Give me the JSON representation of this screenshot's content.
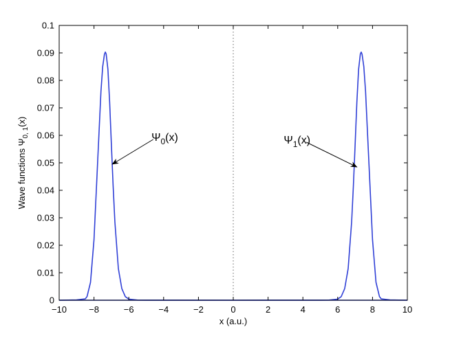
{
  "chart_data": {
    "type": "line",
    "title": "",
    "xlabel": "x (a.u.)",
    "ylabel_main": "Wave functions  Ψ",
    "ylabel_sub": "0, 1",
    "ylabel_tail": "(x)",
    "xlim": [
      -10,
      10
    ],
    "ylim": [
      0,
      0.1
    ],
    "xticks": [
      -10,
      -8,
      -6,
      -4,
      -2,
      0,
      2,
      4,
      6,
      8,
      10
    ],
    "xtick_labels": [
      "−10",
      "−8",
      "−6",
      "−4",
      "−2",
      "0",
      "2",
      "4",
      "6",
      "8",
      "10"
    ],
    "yticks": [
      0,
      0.01,
      0.02,
      0.03,
      0.04,
      0.05,
      0.06,
      0.07,
      0.08,
      0.09,
      0.1
    ],
    "ytick_labels": [
      "0",
      "0.01",
      "0.02",
      "0.03",
      "0.04",
      "0.05",
      "0.06",
      "0.07",
      "0.08",
      "0.09",
      "0.1"
    ],
    "grid": false,
    "line_color": "#2f3fd6",
    "center_line": {
      "x": 0,
      "style": "dotted",
      "color": "#666666"
    },
    "series": [
      {
        "x": [
          -10,
          -9.0,
          -8.5,
          -8.4,
          -8.2,
          -8.0,
          -7.8,
          -7.6,
          -7.5,
          -7.4,
          -7.35,
          -7.3,
          -7.2,
          -7.1,
          -7.0,
          -6.9,
          -6.8,
          -6.6,
          -6.4,
          -6.2,
          -6.0,
          -5.5,
          -5.0,
          0,
          5.0,
          10
        ],
        "y": [
          0,
          0.0001,
          0.0005,
          0.0013,
          0.0065,
          0.022,
          0.049,
          0.076,
          0.085,
          0.0895,
          0.0903,
          0.0896,
          0.084,
          0.072,
          0.0565,
          0.0415,
          0.0285,
          0.0115,
          0.0042,
          0.0013,
          0.0004,
          5e-05,
          1e-05,
          0,
          0,
          0
        ]
      },
      {
        "x": [
          -10,
          -5.0,
          0,
          5.0,
          5.5,
          6.0,
          6.2,
          6.4,
          6.6,
          6.8,
          6.9,
          7.0,
          7.1,
          7.2,
          7.3,
          7.35,
          7.4,
          7.5,
          7.6,
          7.8,
          8.0,
          8.2,
          8.4,
          8.5,
          9.0,
          10
        ],
        "y": [
          0,
          0,
          0,
          1e-05,
          5e-05,
          0.0004,
          0.0013,
          0.0042,
          0.0115,
          0.0285,
          0.0415,
          0.0565,
          0.072,
          0.084,
          0.0896,
          0.0903,
          0.0895,
          0.085,
          0.076,
          0.049,
          0.022,
          0.0065,
          0.0013,
          0.0005,
          0.0001,
          0
        ]
      }
    ],
    "annotations": [
      {
        "label": "Ψ",
        "sub": "0",
        "tail": "(x)",
        "text_at": [
          -4.7,
          0.058
        ],
        "arrow_from": [
          -4.6,
          0.0585
        ],
        "arrow_to": [
          -6.95,
          0.0495
        ]
      },
      {
        "label": "Ψ",
        "sub": "1",
        "tail": "(x)",
        "text_at": [
          2.9,
          0.057
        ],
        "arrow_from": [
          4.2,
          0.0575
        ],
        "arrow_to": [
          7.1,
          0.0485
        ]
      }
    ]
  }
}
